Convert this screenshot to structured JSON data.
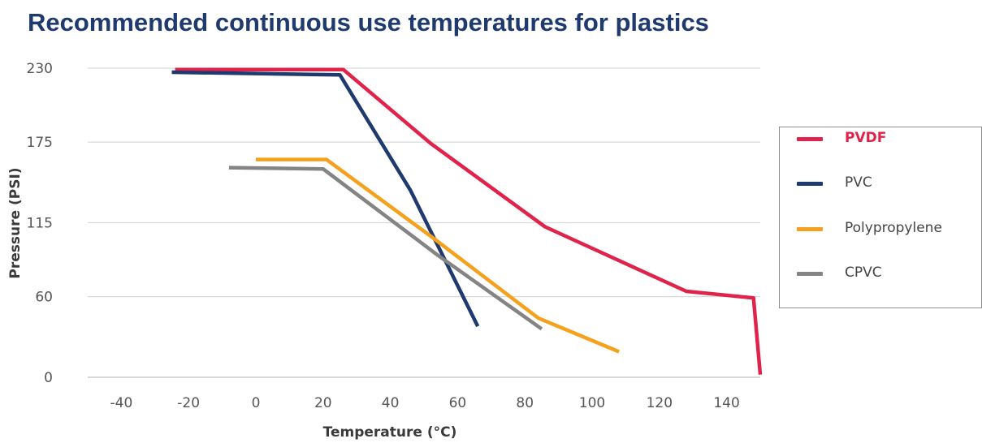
{
  "chart_data": {
    "type": "line",
    "title": "Recommended continuous use temperatures for plastics",
    "xlabel": "Temperature (°C)",
    "ylabel": "Pressure (PSI)",
    "xlim": [
      -50,
      150
    ],
    "ylim": [
      0,
      230
    ],
    "x_ticks": [
      -40,
      -20,
      0,
      20,
      40,
      60,
      80,
      100,
      120,
      140
    ],
    "y_ticks": [
      0,
      60,
      115,
      175,
      230
    ],
    "y_tick_labels": [
      "0",
      "60",
      "115",
      "175",
      "230"
    ],
    "grid": true,
    "legend_position": "right",
    "series": [
      {
        "name": "PVDF",
        "color": "#e0234a",
        "highlight": true,
        "points": [
          [
            -24,
            229
          ],
          [
            26,
            229
          ],
          [
            52,
            174
          ],
          [
            86,
            112
          ],
          [
            128,
            64
          ],
          [
            148,
            59
          ],
          [
            150,
            2
          ]
        ]
      },
      {
        "name": "PVC",
        "color": "#1f3a6e",
        "points": [
          [
            -25,
            227
          ],
          [
            25,
            225
          ],
          [
            46,
            139
          ],
          [
            66,
            38
          ]
        ]
      },
      {
        "name": "Polypropylene",
        "color": "#f4a11e",
        "points": [
          [
            0,
            162
          ],
          [
            21,
            162
          ],
          [
            52,
            105
          ],
          [
            84,
            44
          ],
          [
            108,
            19
          ]
        ]
      },
      {
        "name": "CPVC",
        "color": "#848484",
        "points": [
          [
            -8,
            156
          ],
          [
            20,
            155
          ],
          [
            54,
            91
          ],
          [
            85,
            36
          ]
        ]
      }
    ]
  }
}
